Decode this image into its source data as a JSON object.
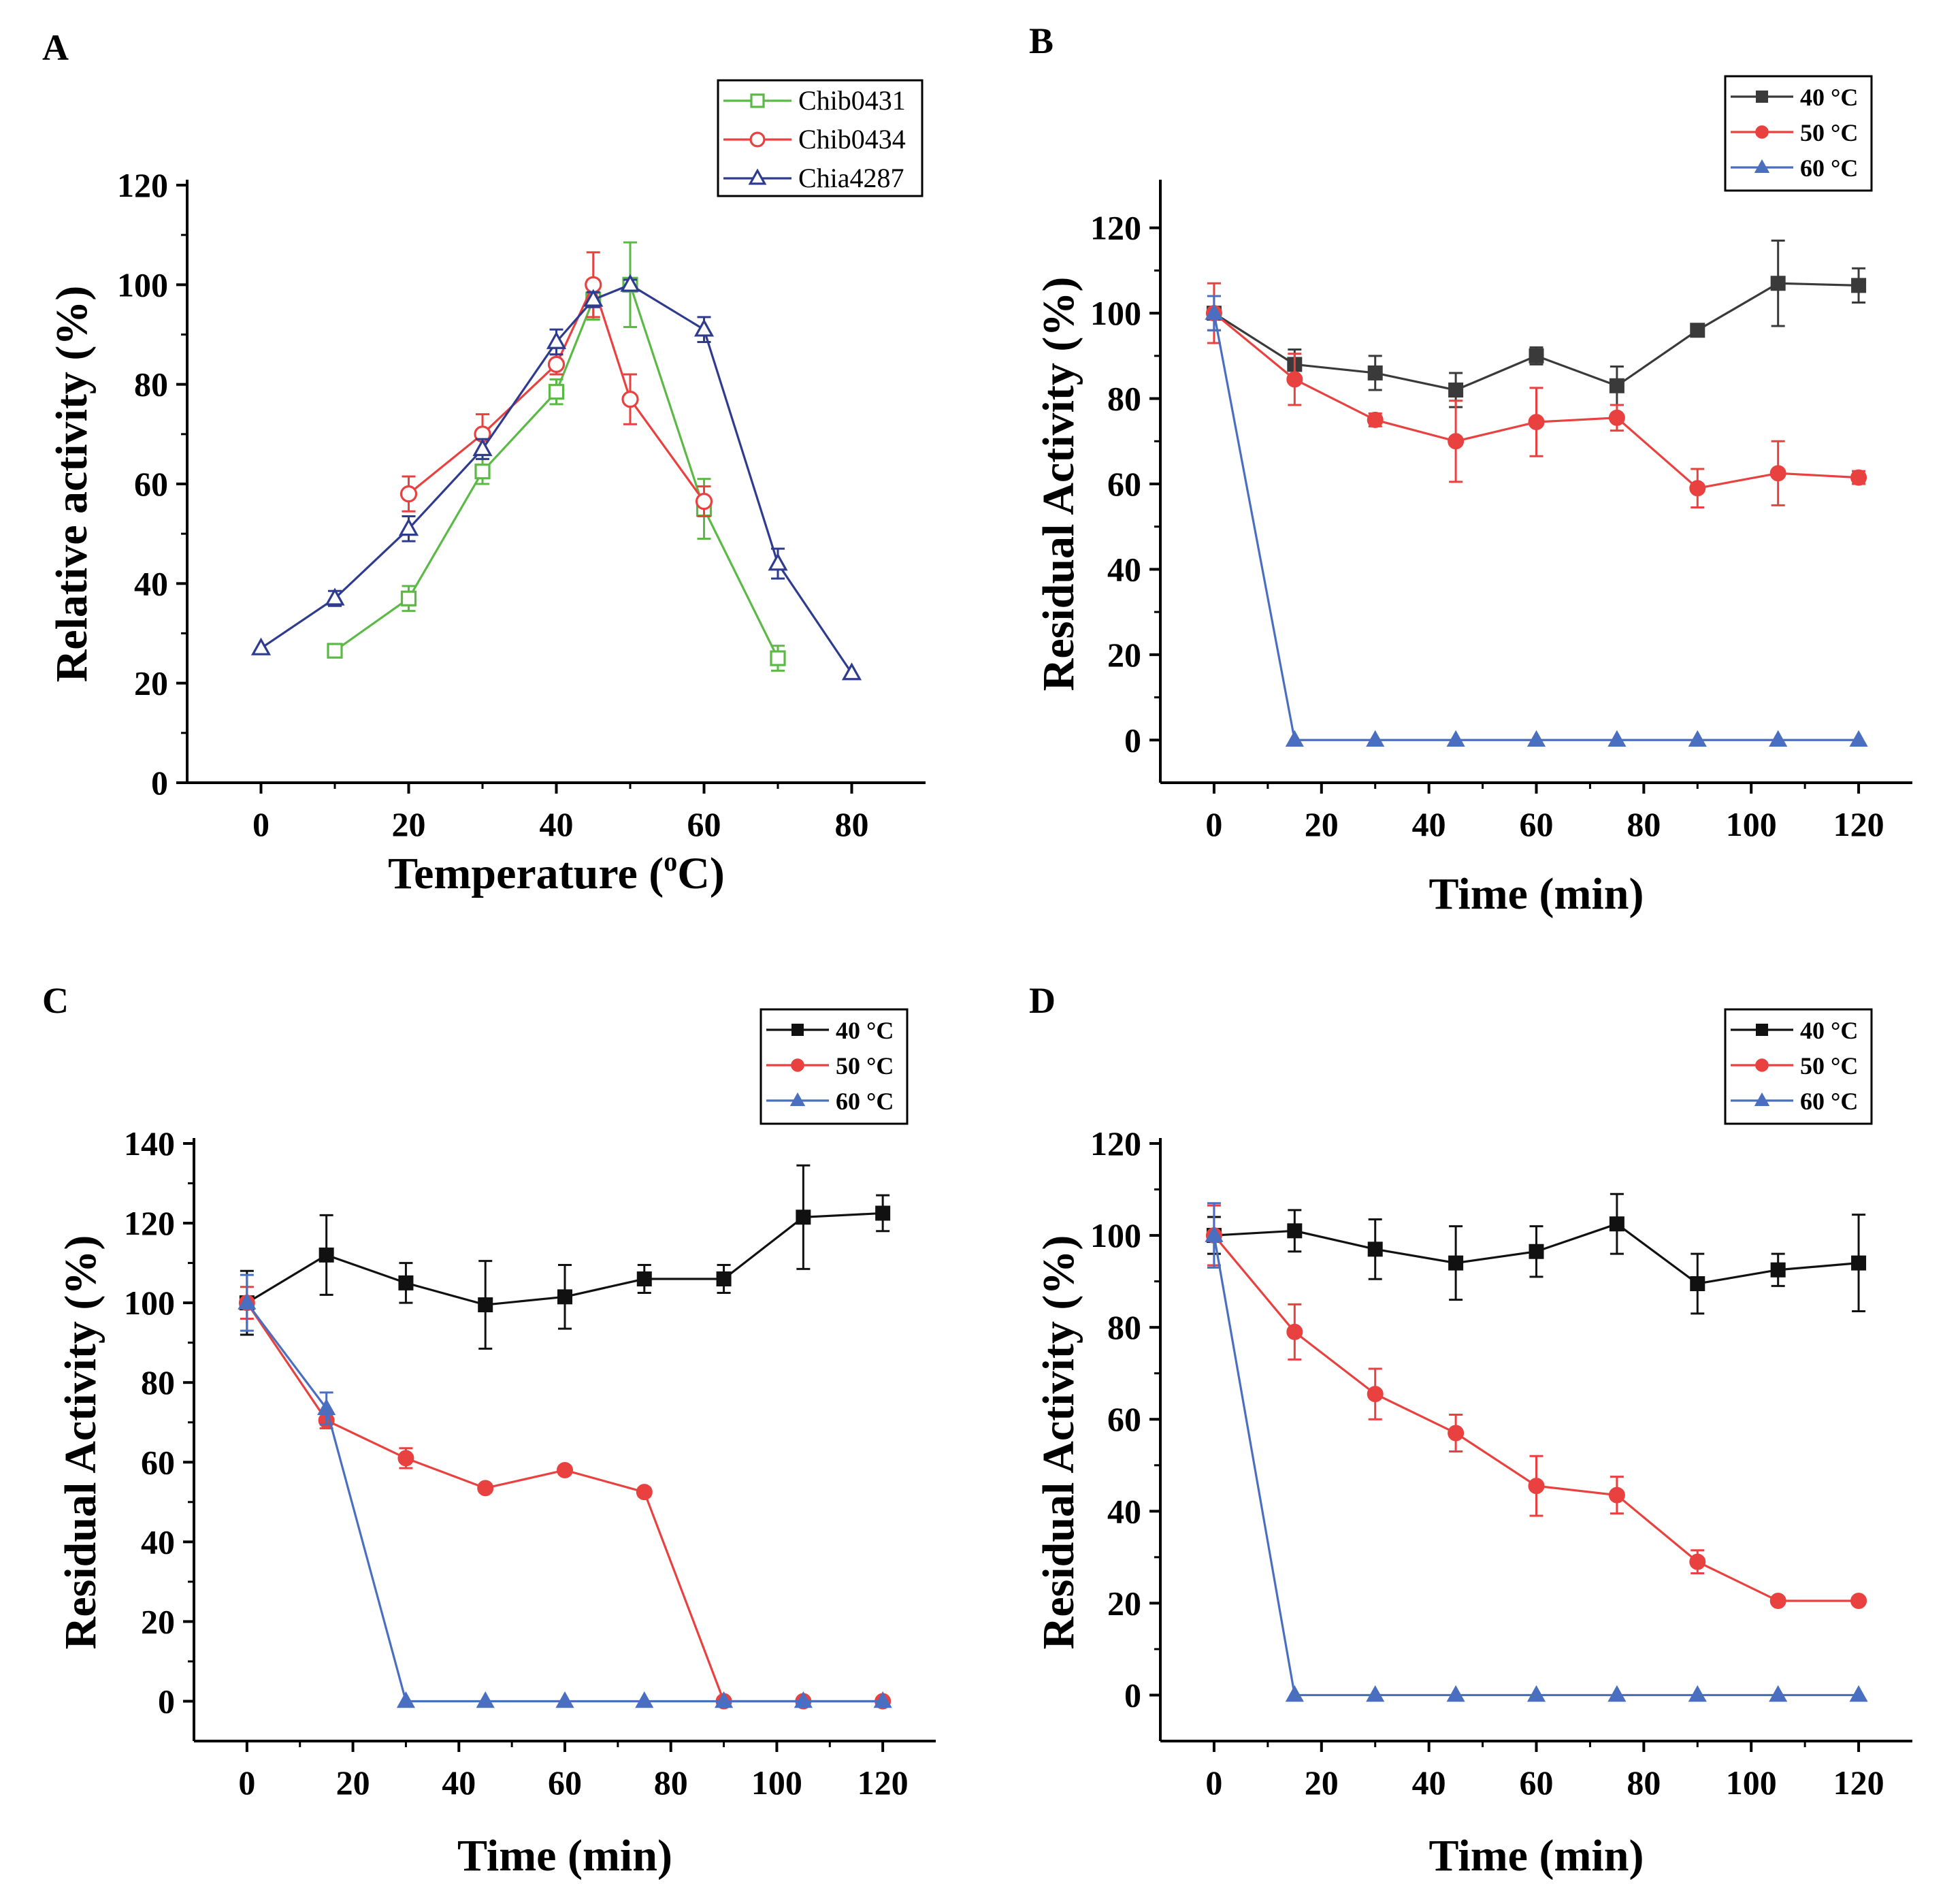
{
  "chart_data": [
    {
      "panel": "A",
      "type": "line",
      "xlabel": "Temperature (",
      "xlabel_sup": "o",
      "xlabel_end": "C)",
      "ylabel": "Relative activity (%)",
      "xlim": [
        -10,
        90
      ],
      "ylim": [
        0,
        120
      ],
      "xticks": [
        0,
        20,
        40,
        60,
        80
      ],
      "yticks": [
        0,
        20,
        40,
        60,
        80,
        100,
        120
      ],
      "legend_position": "top-right",
      "marker_style": "hollow",
      "series": [
        {
          "name": "Chib0431",
          "color": "#5bb946",
          "marker": "square",
          "x": [
            10,
            20,
            30,
            40,
            45,
            50,
            60,
            70
          ],
          "y": [
            26.5,
            37,
            62.5,
            78.5,
            97,
            100,
            55,
            25
          ],
          "err": [
            0,
            2.5,
            2.5,
            2.5,
            4,
            8.5,
            6,
            2.5
          ]
        },
        {
          "name": "Chib0434",
          "color": "#e8413f",
          "marker": "circle",
          "x": [
            20,
            30,
            40,
            45,
            50,
            60
          ],
          "y": [
            58,
            70,
            84,
            100,
            77,
            56.5
          ],
          "err": [
            3.5,
            4,
            2,
            6.5,
            5,
            3
          ]
        },
        {
          "name": "Chia4287",
          "color": "#2f3b8f",
          "marker": "triangle",
          "x": [
            0,
            10,
            20,
            30,
            40,
            45,
            50,
            60,
            70,
            80
          ],
          "y": [
            27,
            37,
            51,
            67,
            88.5,
            97,
            100,
            91,
            44,
            22
          ],
          "err": [
            0,
            1.5,
            2.5,
            2,
            2.5,
            1.5,
            1,
            2.5,
            3,
            0
          ]
        }
      ]
    },
    {
      "panel": "B",
      "type": "line",
      "xlabel": "Time (min)",
      "ylabel": "Residual Activity (%)",
      "xlim": [
        -10,
        130
      ],
      "ylim": [
        -10,
        130
      ],
      "xticks": [
        0,
        20,
        40,
        60,
        80,
        100,
        120
      ],
      "yticks": [
        0,
        20,
        40,
        60,
        80,
        100,
        120
      ],
      "legend_position": "top-right",
      "marker_style": "filled",
      "series": [
        {
          "name": "40 °C",
          "color": "#3a3a3a",
          "marker": "square",
          "x": [
            0,
            15,
            30,
            45,
            60,
            75,
            90,
            105,
            120
          ],
          "y": [
            100,
            88,
            86,
            82,
            90,
            83,
            96,
            107,
            106.5
          ],
          "err": [
            4,
            3.5,
            4,
            4,
            2,
            4.5,
            1,
            10,
            4
          ]
        },
        {
          "name": "50 °C",
          "color": "#e8413f",
          "marker": "circle",
          "x": [
            0,
            15,
            30,
            45,
            60,
            75,
            90,
            105,
            120
          ],
          "y": [
            100,
            84.5,
            75,
            70,
            74.5,
            75.5,
            59,
            62.5,
            61.5
          ],
          "err": [
            7,
            6,
            1.5,
            9.5,
            8,
            3,
            4.5,
            7.5,
            1.5
          ]
        },
        {
          "name": "60 °C",
          "color": "#4a6fc1",
          "marker": "triangle",
          "x": [
            0,
            15,
            30,
            45,
            60,
            75,
            90,
            105,
            120
          ],
          "y": [
            100,
            0,
            0,
            0,
            0,
            0,
            0,
            0,
            0
          ],
          "err": [
            4,
            0,
            0,
            0,
            0,
            0,
            0,
            0,
            0
          ]
        }
      ]
    },
    {
      "panel": "C",
      "type": "line",
      "xlabel": "Time (min)",
      "ylabel": "Residual Activity (%)",
      "xlim": [
        -10,
        130
      ],
      "ylim": [
        -10,
        140
      ],
      "xticks": [
        0,
        20,
        40,
        60,
        80,
        100,
        120
      ],
      "yticks": [
        0,
        20,
        40,
        60,
        80,
        100,
        120,
        140
      ],
      "legend_position": "top-right",
      "marker_style": "filled",
      "series": [
        {
          "name": "40 °C",
          "color": "#111111",
          "marker": "square",
          "x": [
            0,
            15,
            30,
            45,
            60,
            75,
            90,
            105,
            120
          ],
          "y": [
            100,
            112,
            105,
            99.5,
            101.5,
            106,
            106,
            121.5,
            122.5
          ],
          "err": [
            8,
            10,
            5,
            11,
            8,
            3.5,
            3.5,
            13,
            4.5
          ]
        },
        {
          "name": "50 °C",
          "color": "#e8413f",
          "marker": "circle",
          "x": [
            0,
            15,
            30,
            45,
            60,
            75,
            90,
            105,
            120
          ],
          "y": [
            100,
            70.5,
            61,
            53.5,
            58,
            52.5,
            0,
            0,
            0
          ],
          "err": [
            4,
            2,
            2.5,
            1,
            1,
            1,
            0,
            0,
            0
          ]
        },
        {
          "name": "60 °C",
          "color": "#4a6fc1",
          "marker": "triangle",
          "x": [
            0,
            15,
            30,
            45,
            60,
            75,
            90,
            105,
            120
          ],
          "y": [
            100,
            73.5,
            0,
            0,
            0,
            0,
            0,
            0,
            0
          ],
          "err": [
            7,
            4,
            0,
            0,
            0,
            0,
            0,
            0,
            0
          ]
        }
      ]
    },
    {
      "panel": "D",
      "type": "line",
      "xlabel": "Time (min)",
      "ylabel": "Residual Activity (%)",
      "xlim": [
        -10,
        130
      ],
      "ylim": [
        -10,
        120
      ],
      "xticks": [
        0,
        20,
        40,
        60,
        80,
        100,
        120
      ],
      "yticks": [
        0,
        20,
        40,
        60,
        80,
        100,
        120
      ],
      "legend_position": "top-right",
      "marker_style": "filled",
      "series": [
        {
          "name": "40 °C",
          "color": "#111111",
          "marker": "square",
          "x": [
            0,
            15,
            30,
            45,
            60,
            75,
            90,
            105,
            120
          ],
          "y": [
            100,
            101,
            97,
            94,
            96.5,
            102.5,
            89.5,
            92.5,
            94
          ],
          "err": [
            4,
            4.5,
            6.5,
            8,
            5.5,
            6.5,
            6.5,
            3.5,
            10.5
          ]
        },
        {
          "name": "50 °C",
          "color": "#e8413f",
          "marker": "circle",
          "x": [
            0,
            15,
            30,
            45,
            60,
            75,
            90,
            105,
            120
          ],
          "y": [
            100,
            79,
            65.5,
            57,
            45.5,
            43.5,
            29,
            20.5,
            20.5
          ],
          "err": [
            6.5,
            6,
            5.5,
            4,
            6.5,
            4,
            2.5,
            0,
            0
          ]
        },
        {
          "name": "60 °C",
          "color": "#4a6fc1",
          "marker": "triangle",
          "x": [
            0,
            15,
            30,
            45,
            60,
            75,
            90,
            105,
            120
          ],
          "y": [
            100,
            0,
            0,
            0,
            0,
            0,
            0,
            0,
            0
          ],
          "err": [
            7,
            0,
            0,
            0,
            0,
            0,
            0,
            0,
            0
          ]
        }
      ]
    }
  ]
}
